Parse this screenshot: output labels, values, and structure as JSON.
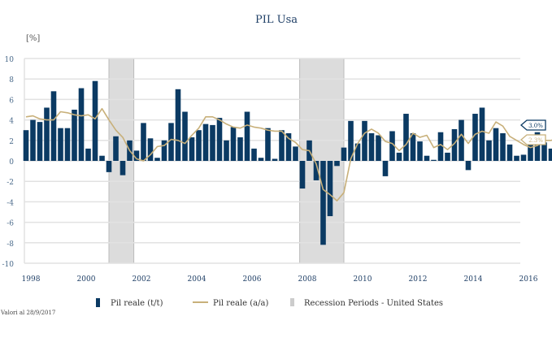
{
  "chart_data": {
    "type": "bar",
    "title": "PIL Usa",
    "ylabel": "[%]",
    "xlabel": "",
    "ylim": [
      -10,
      10
    ],
    "yticks": [
      10,
      8,
      6,
      4,
      2,
      0,
      -2,
      -4,
      -6,
      -8,
      -10
    ],
    "xtick_labels": [
      "1998",
      "2000",
      "2002",
      "2004",
      "2006",
      "2008",
      "2010",
      "2012",
      "2014",
      "2016"
    ],
    "start_year": 1998,
    "frequency": "quarterly",
    "grid": true,
    "legend_position": "bottom",
    "series": [
      {
        "name": "Pil reale (t/t)",
        "kind": "bar",
        "color": "#0b3a63",
        "values": [
          3.0,
          4.0,
          3.8,
          5.2,
          6.8,
          3.2,
          3.2,
          5.0,
          7.1,
          1.2,
          7.8,
          0.5,
          -1.1,
          2.4,
          -1.4,
          2.0,
          1.0,
          3.7,
          2.2,
          0.3,
          2.0,
          3.7,
          7.0,
          4.8,
          2.3,
          3.0,
          3.6,
          3.5,
          4.2,
          2.0,
          3.3,
          2.3,
          4.8,
          1.2,
          0.3,
          3.2,
          0.2,
          3.0,
          2.7,
          1.4,
          -2.7,
          2.0,
          -1.9,
          -8.2,
          -5.4,
          -0.5,
          1.3,
          3.9,
          1.7,
          3.9,
          2.7,
          2.5,
          -1.5,
          2.9,
          0.8,
          4.6,
          2.7,
          1.9,
          0.5,
          0.1,
          2.8,
          0.8,
          3.1,
          4.0,
          -0.9,
          4.6,
          5.2,
          2.0,
          3.2,
          2.7,
          1.6,
          0.5,
          0.6,
          2.2,
          2.8,
          1.8,
          1.2,
          3.0
        ]
      },
      {
        "name": "Pil reale (a/a)",
        "kind": "line",
        "color": "#c8b07a",
        "values": [
          4.3,
          4.4,
          4.1,
          4.0,
          4.0,
          4.8,
          4.7,
          4.5,
          4.4,
          4.5,
          4.1,
          5.1,
          4.0,
          3.0,
          2.3,
          1.0,
          0.2,
          0.0,
          0.6,
          1.4,
          1.5,
          2.1,
          2.0,
          1.7,
          2.5,
          3.2,
          4.3,
          4.3,
          4.0,
          3.6,
          3.3,
          3.2,
          3.5,
          3.3,
          3.2,
          3.0,
          2.9,
          2.9,
          2.2,
          1.8,
          1.1,
          1.0,
          -0.3,
          -2.8,
          -3.3,
          -3.9,
          -3.1,
          0.2,
          1.7,
          2.7,
          3.1,
          2.7,
          1.9,
          1.7,
          1.0,
          1.6,
          2.7,
          2.3,
          2.5,
          1.3,
          1.6,
          1.1,
          1.7,
          2.6,
          1.7,
          2.6,
          2.9,
          2.7,
          3.8,
          3.4,
          2.4,
          2.0,
          1.6,
          1.3,
          1.5,
          2.0,
          2.0,
          2.3
        ]
      }
    ],
    "recessions": {
      "name": "Recession Periods - United States",
      "color": "#dcdcdc",
      "periods": [
        [
          2001.0,
          2001.9
        ],
        [
          2007.9,
          2009.5
        ]
      ]
    },
    "end_labels": [
      {
        "text": "3.0%",
        "value": 3.0,
        "color": "#0b3a63"
      },
      {
        "text": "2.3%",
        "value": 2.3,
        "color": "#c8b07a"
      }
    ],
    "footnote": "Valori al 28/9/2017"
  }
}
